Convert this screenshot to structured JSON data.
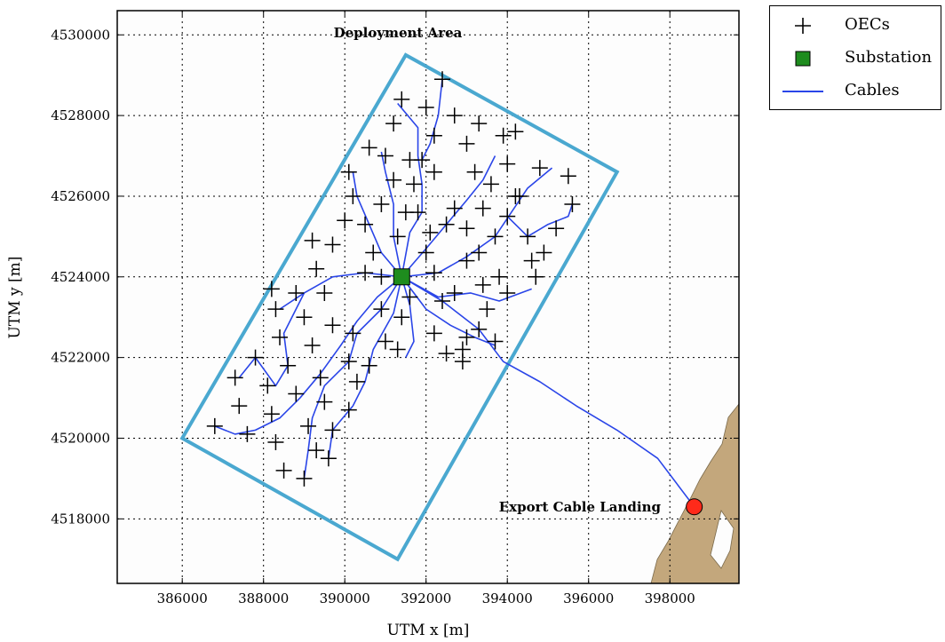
{
  "chart_data": {
    "type": "scatter",
    "title": "",
    "xlabel": "UTM x [m]",
    "ylabel": "UTM y [m]",
    "xlim": [
      384400,
      399700
    ],
    "ylim": [
      4516400,
      4530600
    ],
    "xticks": [
      386000,
      388000,
      390000,
      392000,
      394000,
      396000,
      398000
    ],
    "yticks": [
      4518000,
      4520000,
      4522000,
      4524000,
      4526000,
      4528000,
      4530000
    ],
    "grid": true,
    "legend": {
      "placement": "outside-top-right",
      "entries": [
        "OECs",
        "Substation",
        "Cables"
      ]
    },
    "annotations": {
      "deployment_area": "Deployment Area",
      "export_cable_landing": "Export Cable Landing"
    },
    "colors": {
      "oec": "#000000",
      "substation": "#1e8c1e",
      "cables": "#2a45e8",
      "deployment_area": "#4aa8d0",
      "land": "#c3a77c",
      "landing": "#ff2a1a"
    },
    "deployment_area_polygon": [
      [
        386000,
        4520000
      ],
      [
        391300,
        4517000
      ],
      [
        396700,
        4526600
      ],
      [
        391500,
        4529500
      ]
    ],
    "substation": [
      391400,
      4524000
    ],
    "landing": [
      398600,
      4518300
    ],
    "export_cable": [
      [
        391400,
        4524000
      ],
      [
        392400,
        4523400
      ],
      [
        393300,
        4522700
      ],
      [
        393900,
        4521900
      ],
      [
        394800,
        4521400
      ],
      [
        395700,
        4520800
      ],
      [
        396700,
        4520200
      ],
      [
        397700,
        4519500
      ],
      [
        398600,
        4518300
      ]
    ],
    "oecs": [
      [
        386800,
        4520300
      ],
      [
        387400,
        4520800
      ],
      [
        387600,
        4520100
      ],
      [
        387300,
        4521500
      ],
      [
        387800,
        4522000
      ],
      [
        388100,
        4521300
      ],
      [
        388200,
        4520600
      ],
      [
        388300,
        4519900
      ],
      [
        388500,
        4519200
      ],
      [
        388400,
        4522500
      ],
      [
        388300,
        4523200
      ],
      [
        388600,
        4521800
      ],
      [
        389000,
        4523000
      ],
      [
        388800,
        4523600
      ],
      [
        388800,
        4521100
      ],
      [
        389100,
        4520300
      ],
      [
        389300,
        4519700
      ],
      [
        389000,
        4519000
      ],
      [
        389200,
        4522300
      ],
      [
        389400,
        4521500
      ],
      [
        389500,
        4520900
      ],
      [
        389700,
        4520200
      ],
      [
        389600,
        4519500
      ],
      [
        389700,
        4522800
      ],
      [
        389500,
        4523600
      ],
      [
        389300,
        4524200
      ],
      [
        389200,
        4524900
      ],
      [
        390200,
        4522600
      ],
      [
        390100,
        4521900
      ],
      [
        390300,
        4521400
      ],
      [
        390100,
        4520700
      ],
      [
        390600,
        4521800
      ],
      [
        390900,
        4523200
      ],
      [
        390500,
        4524100
      ],
      [
        389700,
        4524800
      ],
      [
        390000,
        4525400
      ],
      [
        390200,
        4526000
      ],
      [
        390100,
        4526600
      ],
      [
        390500,
        4525300
      ],
      [
        390700,
        4524600
      ],
      [
        390900,
        4524000
      ],
      [
        390600,
        4527200
      ],
      [
        391000,
        4527000
      ],
      [
        391200,
        4526400
      ],
      [
        390900,
        4525800
      ],
      [
        391500,
        4525600
      ],
      [
        391300,
        4525000
      ],
      [
        391400,
        4523000
      ],
      [
        391300,
        4522200
      ],
      [
        391000,
        4522400
      ],
      [
        391600,
        4523500
      ],
      [
        391200,
        4527800
      ],
      [
        391400,
        4528400
      ],
      [
        391600,
        4526900
      ],
      [
        391700,
        4526300
      ],
      [
        392100,
        4525100
      ],
      [
        392000,
        4524600
      ],
      [
        392200,
        4524100
      ],
      [
        392400,
        4523400
      ],
      [
        392200,
        4522600
      ],
      [
        392500,
        4522100
      ],
      [
        392700,
        4523600
      ],
      [
        392900,
        4522200
      ],
      [
        393000,
        4522500
      ],
      [
        392900,
        4521900
      ],
      [
        393300,
        4522700
      ],
      [
        393500,
        4523200
      ],
      [
        393700,
        4522400
      ],
      [
        393400,
        4523800
      ],
      [
        393000,
        4524400
      ],
      [
        393300,
        4524600
      ],
      [
        393000,
        4525200
      ],
      [
        393400,
        4525700
      ],
      [
        393600,
        4526300
      ],
      [
        393200,
        4526600
      ],
      [
        393000,
        4527300
      ],
      [
        392700,
        4528000
      ],
      [
        393300,
        4527800
      ],
      [
        393900,
        4527500
      ],
      [
        394000,
        4526800
      ],
      [
        394300,
        4526000
      ],
      [
        394000,
        4525500
      ],
      [
        394500,
        4525000
      ],
      [
        394600,
        4524400
      ],
      [
        394700,
        4524000
      ],
      [
        394900,
        4524600
      ],
      [
        395200,
        4525200
      ],
      [
        395600,
        4525800
      ],
      [
        395500,
        4526500
      ],
      [
        394800,
        4526700
      ],
      [
        394200,
        4527600
      ],
      [
        392000,
        4528200
      ],
      [
        392200,
        4527500
      ],
      [
        391900,
        4526900
      ],
      [
        392200,
        4526600
      ],
      [
        391800,
        4525600
      ],
      [
        392400,
        4528900
      ],
      [
        392700,
        4525700
      ],
      [
        393800,
        4524000
      ],
      [
        394000,
        4523600
      ],
      [
        393700,
        4525000
      ],
      [
        392500,
        4525300
      ],
      [
        394200,
        4526000
      ],
      [
        388200,
        4523700
      ]
    ],
    "cables": [
      [
        [
          391400,
          4524000
        ],
        [
          390800,
          4523500
        ],
        [
          390300,
          4522900
        ],
        [
          389900,
          4522300
        ],
        [
          389400,
          4521600
        ],
        [
          388900,
          4521000
        ],
        [
          388400,
          4520500
        ],
        [
          387800,
          4520200
        ],
        [
          387300,
          4520100
        ],
        [
          386800,
          4520300
        ]
      ],
      [
        [
          391400,
          4524000
        ],
        [
          390900,
          4523200
        ],
        [
          390300,
          4522600
        ],
        [
          390100,
          4521900
        ],
        [
          389500,
          4521300
        ],
        [
          389200,
          4520500
        ],
        [
          389100,
          4519700
        ],
        [
          389000,
          4519000
        ]
      ],
      [
        [
          391400,
          4524000
        ],
        [
          391200,
          4523100
        ],
        [
          390700,
          4522200
        ],
        [
          390500,
          4521400
        ],
        [
          390200,
          4520800
        ],
        [
          389700,
          4520200
        ],
        [
          389600,
          4519500
        ]
      ],
      [
        [
          391400,
          4524000
        ],
        [
          390500,
          4524100
        ],
        [
          389700,
          4524000
        ],
        [
          389000,
          4523600
        ],
        [
          388400,
          4523200
        ]
      ],
      [
        [
          389000,
          4523600
        ],
        [
          388500,
          4522600
        ],
        [
          388600,
          4521800
        ],
        [
          388300,
          4521300
        ],
        [
          387800,
          4522000
        ],
        [
          387400,
          4521500
        ]
      ],
      [
        [
          391400,
          4524000
        ],
        [
          390900,
          4524600
        ],
        [
          390600,
          4525300
        ],
        [
          390300,
          4526000
        ],
        [
          390200,
          4526600
        ]
      ],
      [
        [
          391400,
          4524000
        ],
        [
          391200,
          4525000
        ],
        [
          391200,
          4525800
        ],
        [
          391000,
          4526600
        ],
        [
          390900,
          4527100
        ]
      ],
      [
        [
          391400,
          4524000
        ],
        [
          391600,
          4525100
        ],
        [
          391900,
          4525600
        ],
        [
          391900,
          4526300
        ],
        [
          391800,
          4527000
        ],
        [
          391800,
          4527700
        ],
        [
          391300,
          4528300
        ]
      ],
      [
        [
          391400,
          4524000
        ],
        [
          392000,
          4524700
        ],
        [
          392500,
          4525300
        ],
        [
          393000,
          4525900
        ],
        [
          393400,
          4526400
        ],
        [
          393700,
          4527000
        ]
      ],
      [
        [
          391400,
          4524000
        ],
        [
          392300,
          4524100
        ],
        [
          393000,
          4524500
        ],
        [
          393700,
          4525000
        ],
        [
          394100,
          4525600
        ],
        [
          394500,
          4526200
        ],
        [
          395100,
          4526700
        ]
      ],
      [
        [
          391400,
          4524000
        ],
        [
          392300,
          4523500
        ],
        [
          393100,
          4523600
        ],
        [
          393800,
          4523400
        ],
        [
          394600,
          4523700
        ]
      ],
      [
        [
          391400,
          4524000
        ],
        [
          392000,
          4523200
        ],
        [
          392600,
          4522800
        ],
        [
          393200,
          4522500
        ],
        [
          393700,
          4522300
        ]
      ],
      [
        [
          391400,
          4524000
        ],
        [
          391600,
          4523300
        ],
        [
          391700,
          4522400
        ],
        [
          391500,
          4522000
        ]
      ],
      [
        [
          392400,
          4528900
        ],
        [
          392300,
          4528000
        ],
        [
          392100,
          4527300
        ],
        [
          391900,
          4526900
        ]
      ],
      [
        [
          394000,
          4525500
        ],
        [
          394500,
          4525000
        ],
        [
          395000,
          4525300
        ],
        [
          395500,
          4525500
        ],
        [
          395600,
          4525800
        ]
      ]
    ]
  }
}
